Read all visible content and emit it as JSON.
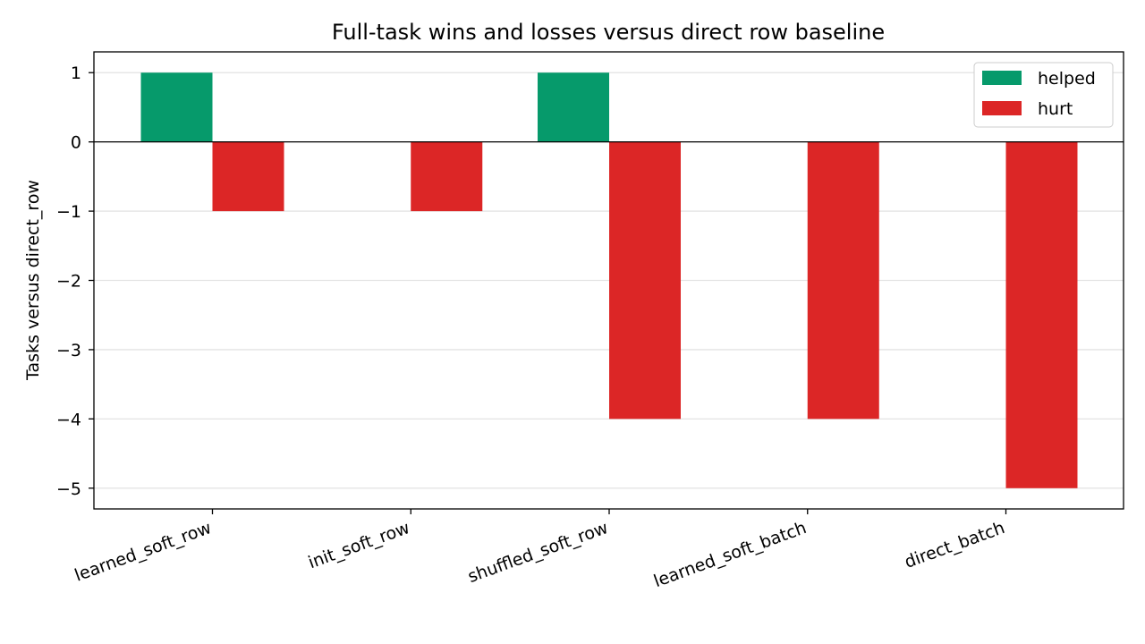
{
  "chart_data": {
    "type": "bar",
    "title": "Full-task wins and losses versus direct row baseline",
    "xlabel": "",
    "ylabel": "Tasks versus direct_row",
    "categories": [
      "learned_soft_row",
      "init_soft_row",
      "shuffled_soft_row",
      "learned_soft_batch",
      "direct_batch"
    ],
    "series": [
      {
        "name": "helped",
        "color": "#069a6b",
        "values": [
          1,
          0,
          1,
          0,
          0
        ]
      },
      {
        "name": "hurt",
        "color": "#dc2626",
        "values": [
          -1,
          -1,
          -4,
          -4,
          -5
        ]
      }
    ],
    "ylim": [
      -5.3,
      1.3
    ],
    "yticks": [
      1,
      0,
      -1,
      -2,
      -3,
      -4,
      -5
    ],
    "ytick_labels": [
      "1",
      "0",
      "−1",
      "−2",
      "−3",
      "−4",
      "−5"
    ],
    "grid": "y",
    "legend": "top-right",
    "zero_line": true
  }
}
